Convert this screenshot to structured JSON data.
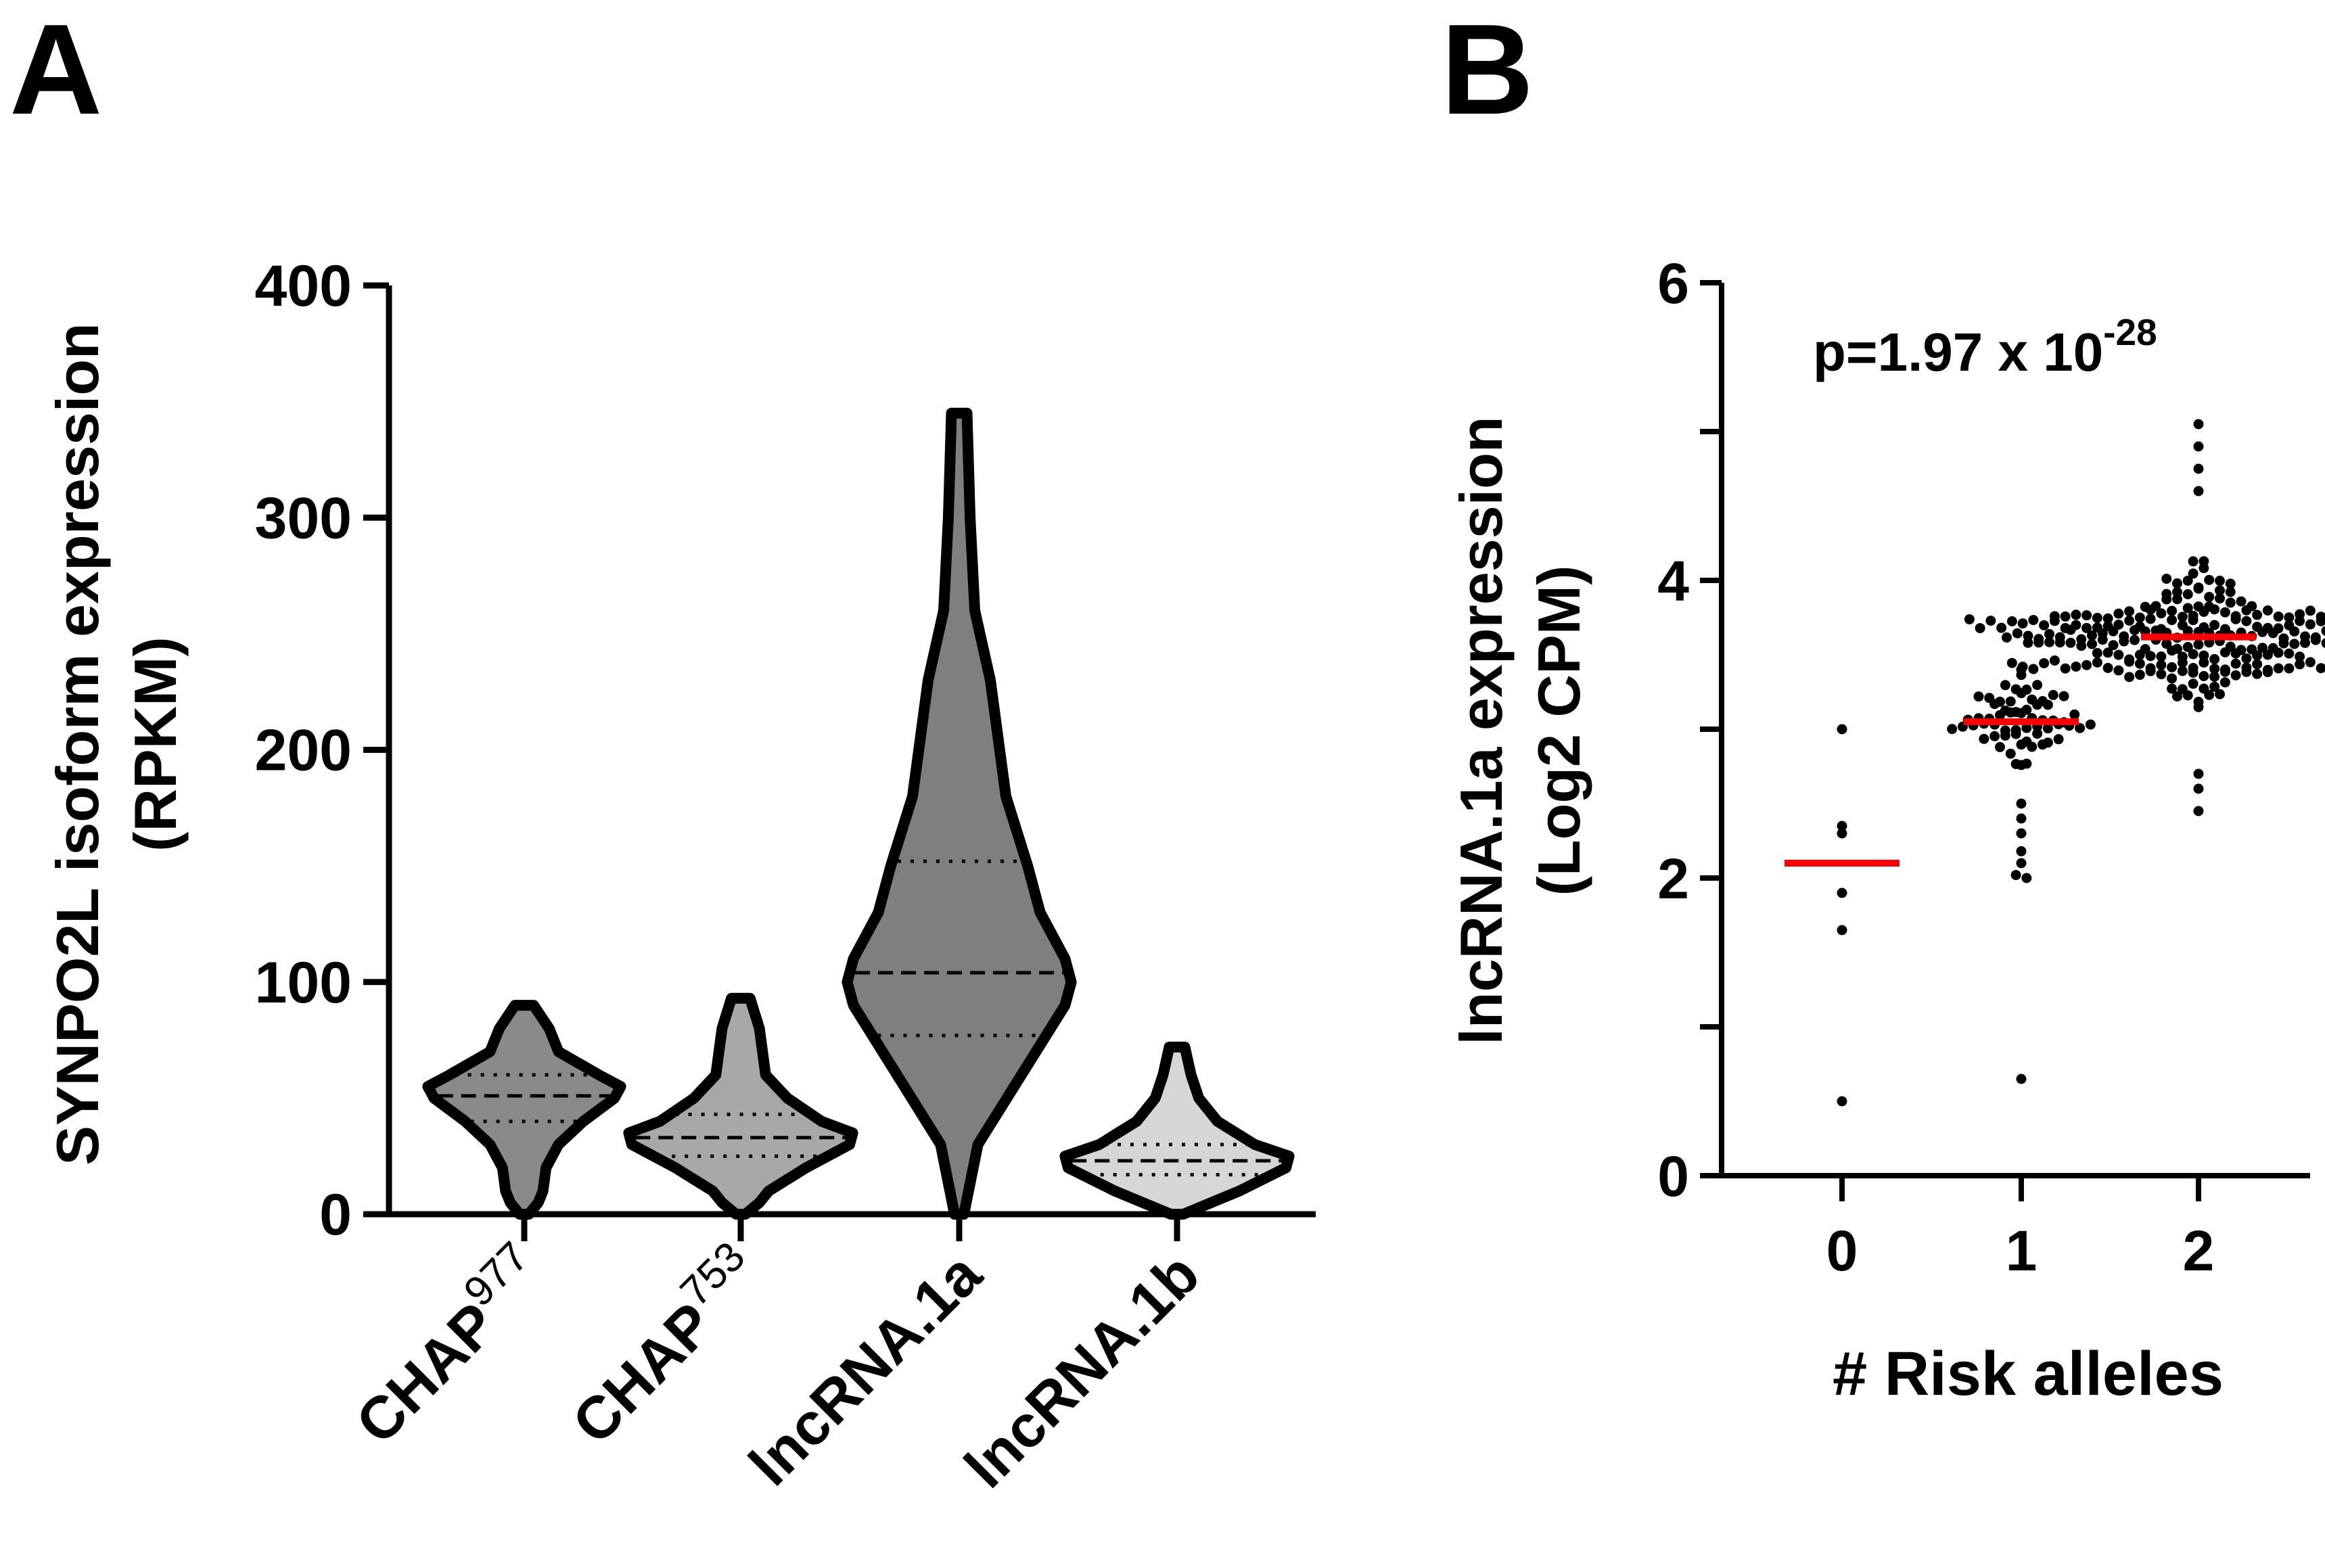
{
  "panels": {
    "a_label": "A",
    "b_label": "B"
  },
  "colors": {
    "dot": "#000000",
    "median_line": "#ff0000",
    "axis": "#000000",
    "violin_fills": [
      "#8a8a8a",
      "#a8a8a8",
      "#7f7f7f",
      "#d6d6d6"
    ]
  },
  "chart_data": [
    {
      "panel": "A",
      "type": "violin",
      "ylabel_line1": "SYNPO2L isoform expression",
      "ylabel_line2": "(RPKM)",
      "ylim": [
        0,
        400
      ],
      "yticks": [
        0,
        100,
        200,
        300,
        400
      ],
      "categories": [
        {
          "base": "CHAP",
          "sup": "977"
        },
        {
          "base": "CHAP",
          "sup": "753"
        },
        {
          "base": "lncRNA.1a",
          "sup": ""
        },
        {
          "base": "lncRNA.1b",
          "sup": ""
        }
      ],
      "violins": [
        {
          "min": 0,
          "max": 90,
          "median": 51,
          "q1": 40,
          "q3": 60,
          "fill_index": 0,
          "profile": [
            [
              0,
              3
            ],
            [
              5,
              9
            ],
            [
              10,
              12
            ],
            [
              20,
              14
            ],
            [
              30,
              22
            ],
            [
              40,
              38
            ],
            [
              50,
              58
            ],
            [
              55,
              62
            ],
            [
              60,
              48
            ],
            [
              70,
              22
            ],
            [
              80,
              16
            ],
            [
              90,
              6
            ]
          ]
        },
        {
          "min": 0,
          "max": 93,
          "median": 33,
          "q1": 25,
          "q3": 43,
          "fill_index": 1,
          "profile": [
            [
              0,
              3
            ],
            [
              5,
              12
            ],
            [
              10,
              18
            ],
            [
              20,
              42
            ],
            [
              30,
              70
            ],
            [
              35,
              72
            ],
            [
              40,
              52
            ],
            [
              50,
              30
            ],
            [
              60,
              16
            ],
            [
              70,
              14
            ],
            [
              80,
              12
            ],
            [
              93,
              6
            ]
          ]
        },
        {
          "min": 0,
          "max": 345,
          "median": 104,
          "q1": 77,
          "q3": 152,
          "fill_index": 2,
          "profile": [
            [
              0,
              3
            ],
            [
              30,
              12
            ],
            [
              60,
              40
            ],
            [
              90,
              68
            ],
            [
              100,
              72
            ],
            [
              110,
              68
            ],
            [
              130,
              52
            ],
            [
              150,
              44
            ],
            [
              180,
              30
            ],
            [
              210,
              24
            ],
            [
              230,
              20
            ],
            [
              260,
              10
            ],
            [
              300,
              7
            ],
            [
              345,
              5
            ]
          ]
        },
        {
          "min": 0,
          "max": 72,
          "median": 23,
          "q1": 17,
          "q3": 30,
          "fill_index": 3,
          "profile": [
            [
              0,
              4
            ],
            [
              10,
              40
            ],
            [
              20,
              70
            ],
            [
              25,
              72
            ],
            [
              30,
              50
            ],
            [
              40,
              26
            ],
            [
              50,
              14
            ],
            [
              60,
              9
            ],
            [
              72,
              5
            ]
          ]
        }
      ]
    },
    {
      "panel": "B",
      "type": "scatter",
      "annotation_prefix": "p=1.97 x 10",
      "annotation_exponent": "-28",
      "xlabel": "# Risk alleles",
      "ylabel_line1": "lncRNA.1a expression",
      "ylabel_line2": "(Log2 CPM)",
      "ylim": [
        0,
        6
      ],
      "yticks": [
        0,
        2,
        4,
        6
      ],
      "xticks": [
        "0",
        "1",
        "2"
      ],
      "groups": [
        {
          "x": 0,
          "mean": 2.1,
          "n": 6,
          "min": 0.5,
          "max": 3.0,
          "values": [
            3.0,
            2.35,
            2.3,
            1.9,
            1.65,
            0.5
          ]
        },
        {
          "x": 1,
          "mean": 3.05,
          "n": 70,
          "min": 0.65,
          "max": 3.85,
          "values": [
            0.65,
            2.0,
            2.02,
            2.1,
            2.18,
            2.3,
            2.4,
            2.5
          ]
        },
        {
          "x": 2,
          "mean": 3.62,
          "n": 260,
          "min": 2.45,
          "max": 5.05,
          "values": [
            2.45,
            2.6,
            2.7,
            4.6,
            4.75,
            4.9,
            5.05
          ]
        }
      ]
    }
  ]
}
